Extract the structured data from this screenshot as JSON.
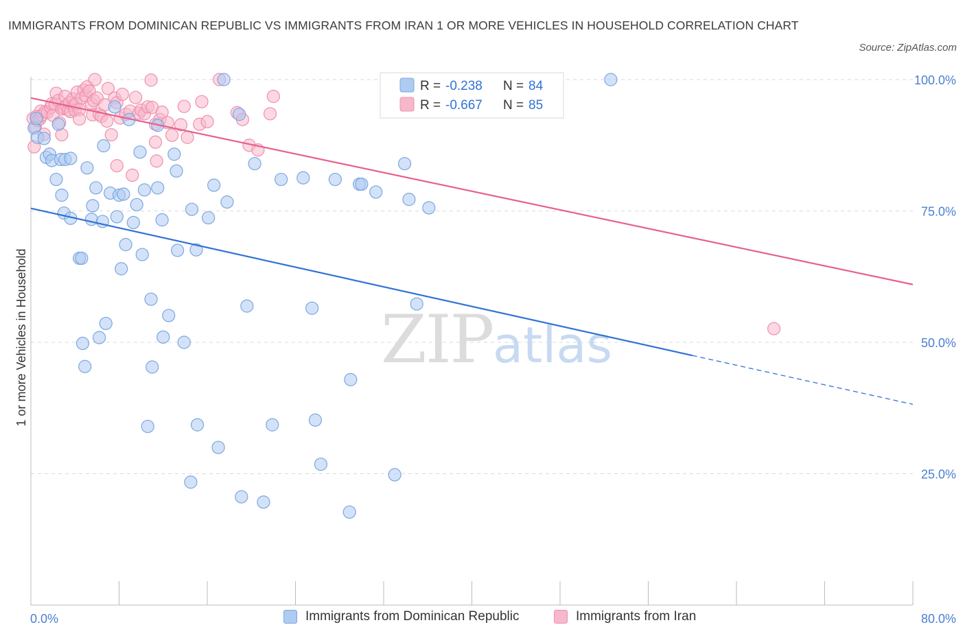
{
  "header": {
    "title": "IMMIGRANTS FROM DOMINICAN REPUBLIC VS IMMIGRANTS FROM IRAN 1 OR MORE VEHICLES IN HOUSEHOLD CORRELATION CHART",
    "source": "Source: ZipAtlas.com"
  },
  "watermark": {
    "zip": "ZIP",
    "atlas": "atlas"
  },
  "colors": {
    "blue_fill": "#aecbf2",
    "blue_stroke": "#7aa7e0",
    "blue_line": "#2f72d6",
    "pink_fill": "#f7b8cb",
    "pink_stroke": "#ef8fae",
    "pink_line": "#e7608b",
    "axis_text": "#4a7fd0",
    "grid": "#d9d9d9"
  },
  "chart_data": {
    "type": "scatter",
    "ylabel": "1 or more Vehicles in Household",
    "xlim": [
      0,
      80
    ],
    "ylim": [
      0,
      100
    ],
    "x_tick_labels": {
      "min": "0.0%",
      "max": "80.0%"
    },
    "y_ticks": [
      {
        "value": 25,
        "label": "25.0%"
      },
      {
        "value": 50,
        "label": "50.0%"
      },
      {
        "value": 75,
        "label": "75.0%"
      },
      {
        "value": 100,
        "label": "100.0%"
      }
    ],
    "legend_top": [
      {
        "r_label": "R = ",
        "r_value": "-0.238",
        "n_label": "N = ",
        "n_value": "84"
      },
      {
        "r_label": "R = ",
        "r_value": "-0.667",
        "n_label": "N = ",
        "n_value": "85"
      }
    ],
    "series": [
      {
        "name": "Immigrants from Dominican Republic",
        "color": "#aecbf2",
        "trend": {
          "x1": 0,
          "y1": 75.5,
          "x2": 60,
          "y2": 47.5,
          "dash_to_x": 80,
          "dash_to_y": 38.2
        },
        "points": [
          [
            0.3,
            90.8
          ],
          [
            0.5,
            92.6
          ],
          [
            0.6,
            89.0
          ],
          [
            1.2,
            88.8
          ],
          [
            1.4,
            85.2
          ],
          [
            1.7,
            85.8
          ],
          [
            1.9,
            84.6
          ],
          [
            2.3,
            81.0
          ],
          [
            2.7,
            84.8
          ],
          [
            2.8,
            78.0
          ],
          [
            3.0,
            74.6
          ],
          [
            3.1,
            84.8
          ],
          [
            3.6,
            85.0
          ],
          [
            3.6,
            73.6
          ],
          [
            4.4,
            66.0
          ],
          [
            4.6,
            66.0
          ],
          [
            4.7,
            49.8
          ],
          [
            4.9,
            45.4
          ],
          [
            5.1,
            83.2
          ],
          [
            5.5,
            73.4
          ],
          [
            5.6,
            76.0
          ],
          [
            5.9,
            79.4
          ],
          [
            6.2,
            50.9
          ],
          [
            6.5,
            73.0
          ],
          [
            6.6,
            87.4
          ],
          [
            6.8,
            53.6
          ],
          [
            7.2,
            78.4
          ],
          [
            7.6,
            94.8
          ],
          [
            7.8,
            73.9
          ],
          [
            8.0,
            78.0
          ],
          [
            8.2,
            64.0
          ],
          [
            8.4,
            78.2
          ],
          [
            8.6,
            68.6
          ],
          [
            8.9,
            92.4
          ],
          [
            9.3,
            72.8
          ],
          [
            9.6,
            76.2
          ],
          [
            9.9,
            86.2
          ],
          [
            10.1,
            66.7
          ],
          [
            10.3,
            79.0
          ],
          [
            10.6,
            34.0
          ],
          [
            10.9,
            58.2
          ],
          [
            11.0,
            45.3
          ],
          [
            11.5,
            91.3
          ],
          [
            11.5,
            79.4
          ],
          [
            11.9,
            73.3
          ],
          [
            12.0,
            51.0
          ],
          [
            12.5,
            55.1
          ],
          [
            13.0,
            85.8
          ],
          [
            13.2,
            82.6
          ],
          [
            13.3,
            67.5
          ],
          [
            13.9,
            50.0
          ],
          [
            14.5,
            23.4
          ],
          [
            14.6,
            75.3
          ],
          [
            15.0,
            67.6
          ],
          [
            15.1,
            34.3
          ],
          [
            16.1,
            73.7
          ],
          [
            16.6,
            79.9
          ],
          [
            17.0,
            30.0
          ],
          [
            17.8,
            76.7
          ],
          [
            18.9,
            93.4
          ],
          [
            19.1,
            20.6
          ],
          [
            19.6,
            56.9
          ],
          [
            20.3,
            84.0
          ],
          [
            21.1,
            19.6
          ],
          [
            21.9,
            34.3
          ],
          [
            22.7,
            81.0
          ],
          [
            24.7,
            81.3
          ],
          [
            25.5,
            56.5
          ],
          [
            25.8,
            35.2
          ],
          [
            26.3,
            26.8
          ],
          [
            27.6,
            81.0
          ],
          [
            28.9,
            17.7
          ],
          [
            29.0,
            42.9
          ],
          [
            29.8,
            80.1
          ],
          [
            30.0,
            80.1
          ],
          [
            31.3,
            78.6
          ],
          [
            33.0,
            24.8
          ],
          [
            33.9,
            84.0
          ],
          [
            34.3,
            77.2
          ],
          [
            35.0,
            57.3
          ],
          [
            36.1,
            75.6
          ],
          [
            52.6,
            100.0
          ],
          [
            17.5,
            100.0
          ],
          [
            2.5,
            91.5
          ]
        ]
      },
      {
        "name": "Immigrants from Iran",
        "color": "#f7b8cb",
        "trend": {
          "x1": 0,
          "y1": 96.5,
          "x2": 80,
          "y2": 61.0
        },
        "points": [
          [
            0.2,
            92.6
          ],
          [
            0.3,
            87.2
          ],
          [
            0.4,
            91.0
          ],
          [
            0.5,
            93.0
          ],
          [
            0.6,
            92.2
          ],
          [
            0.8,
            92.5
          ],
          [
            0.9,
            94.0
          ],
          [
            1.0,
            93.2
          ],
          [
            1.2,
            89.6
          ],
          [
            1.3,
            93.9
          ],
          [
            1.5,
            93.8
          ],
          [
            1.8,
            94.7
          ],
          [
            1.9,
            95.4
          ],
          [
            2.0,
            93.2
          ],
          [
            2.2,
            95.3
          ],
          [
            2.3,
            97.4
          ],
          [
            2.5,
            96.0
          ],
          [
            2.6,
            91.8
          ],
          [
            2.8,
            89.5
          ],
          [
            2.8,
            94.4
          ],
          [
            3.0,
            94.6
          ],
          [
            3.1,
            96.8
          ],
          [
            3.2,
            95.0
          ],
          [
            3.4,
            94.2
          ],
          [
            3.5,
            95.6
          ],
          [
            3.6,
            93.9
          ],
          [
            3.8,
            96.3
          ],
          [
            3.9,
            95.0
          ],
          [
            4.0,
            94.2
          ],
          [
            4.1,
            95.4
          ],
          [
            4.2,
            97.6
          ],
          [
            4.4,
            94.3
          ],
          [
            4.4,
            92.5
          ],
          [
            4.6,
            96.5
          ],
          [
            4.8,
            98.0
          ],
          [
            5.0,
            96.9
          ],
          [
            5.1,
            98.6
          ],
          [
            5.3,
            97.8
          ],
          [
            5.5,
            95.4
          ],
          [
            5.6,
            93.3
          ],
          [
            5.7,
            96.0
          ],
          [
            5.8,
            100.0
          ],
          [
            6.0,
            96.5
          ],
          [
            6.2,
            93.4
          ],
          [
            6.4,
            93.0
          ],
          [
            6.7,
            95.2
          ],
          [
            6.9,
            92.1
          ],
          [
            7.0,
            98.3
          ],
          [
            7.3,
            89.5
          ],
          [
            7.6,
            96.5
          ],
          [
            7.8,
            83.6
          ],
          [
            7.8,
            95.6
          ],
          [
            8.1,
            92.7
          ],
          [
            8.3,
            97.2
          ],
          [
            8.6,
            93.4
          ],
          [
            9.0,
            94.0
          ],
          [
            9.2,
            81.8
          ],
          [
            9.5,
            96.6
          ],
          [
            9.8,
            93.6
          ],
          [
            10.0,
            94.2
          ],
          [
            10.3,
            93.5
          ],
          [
            10.6,
            94.8
          ],
          [
            11.0,
            94.7
          ],
          [
            11.3,
            91.5
          ],
          [
            11.3,
            88.1
          ],
          [
            11.4,
            84.5
          ],
          [
            11.7,
            92.4
          ],
          [
            11.9,
            93.8
          ],
          [
            12.4,
            91.8
          ],
          [
            12.8,
            89.4
          ],
          [
            13.6,
            91.4
          ],
          [
            13.9,
            94.9
          ],
          [
            14.2,
            89.0
          ],
          [
            15.3,
            91.5
          ],
          [
            15.5,
            95.8
          ],
          [
            16.0,
            92.0
          ],
          [
            17.1,
            100.0
          ],
          [
            18.7,
            93.7
          ],
          [
            19.2,
            92.4
          ],
          [
            19.8,
            87.5
          ],
          [
            20.6,
            86.6
          ],
          [
            21.7,
            93.5
          ],
          [
            22.0,
            96.8
          ],
          [
            67.4,
            52.6
          ],
          [
            10.9,
            99.9
          ]
        ]
      }
    ]
  }
}
